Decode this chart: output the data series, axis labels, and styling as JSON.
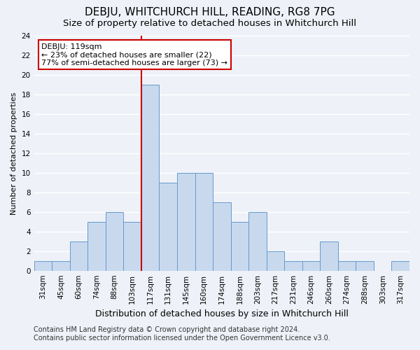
{
  "title": "DEBJU, WHITCHURCH HILL, READING, RG8 7PG",
  "subtitle": "Size of property relative to detached houses in Whitchurch Hill",
  "xlabel": "Distribution of detached houses by size in Whitchurch Hill",
  "ylabel": "Number of detached properties",
  "bin_labels": [
    "31sqm",
    "45sqm",
    "60sqm",
    "74sqm",
    "88sqm",
    "103sqm",
    "117sqm",
    "131sqm",
    "145sqm",
    "160sqm",
    "174sqm",
    "188sqm",
    "203sqm",
    "217sqm",
    "231sqm",
    "246sqm",
    "260sqm",
    "274sqm",
    "288sqm",
    "303sqm",
    "317sqm"
  ],
  "bar_heights": [
    1,
    1,
    3,
    5,
    6,
    5,
    19,
    9,
    10,
    10,
    7,
    5,
    6,
    2,
    1,
    1,
    3,
    1,
    1,
    0,
    1
  ],
  "bar_color": "#c8d9ee",
  "bar_edge_color": "#6699cc",
  "highlight_index": 6,
  "highlight_line_color": "#cc0000",
  "ylim": [
    0,
    24
  ],
  "yticks": [
    0,
    2,
    4,
    6,
    8,
    10,
    12,
    14,
    16,
    18,
    20,
    22,
    24
  ],
  "annotation_title": "DEBJU: 119sqm",
  "annotation_line1": "← 23% of detached houses are smaller (22)",
  "annotation_line2": "77% of semi-detached houses are larger (73) →",
  "annotation_box_color": "#ffffff",
  "annotation_box_edge": "#cc0000",
  "footer_line1": "Contains HM Land Registry data © Crown copyright and database right 2024.",
  "footer_line2": "Contains public sector information licensed under the Open Government Licence v3.0.",
  "background_color": "#eef2f8",
  "grid_color": "#ffffff",
  "title_fontsize": 11,
  "subtitle_fontsize": 9.5,
  "xlabel_fontsize": 9,
  "ylabel_fontsize": 8,
  "tick_fontsize": 7.5,
  "footer_fontsize": 7,
  "annotation_fontsize": 8
}
